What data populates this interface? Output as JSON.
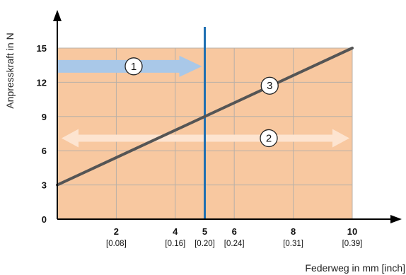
{
  "chart_data": {
    "type": "line",
    "xlabel": "Federweg in mm [inch]",
    "ylabel": "Anpresskraft in N",
    "xlim": [
      0,
      10
    ],
    "ylim": [
      0,
      15
    ],
    "x_ticks": [
      {
        "value": 2,
        "label": "2",
        "sublabel": "[0.08]"
      },
      {
        "value": 4,
        "label": "4",
        "sublabel": "[0.16]"
      },
      {
        "value": 5,
        "label": "5",
        "sublabel": "[0.20]"
      },
      {
        "value": 6,
        "label": "6",
        "sublabel": "[0.24]"
      },
      {
        "value": 8,
        "label": "8",
        "sublabel": "[0.31]"
      },
      {
        "value": 10,
        "label": "10",
        "sublabel": "[0.39]"
      }
    ],
    "y_ticks": [
      {
        "value": 0,
        "label": "0"
      },
      {
        "value": 3,
        "label": "3"
      },
      {
        "value": 6,
        "label": "6"
      },
      {
        "value": 9,
        "label": "9"
      },
      {
        "value": 12,
        "label": "12"
      },
      {
        "value": 15,
        "label": "15"
      }
    ],
    "grid": true,
    "series": [
      {
        "x": [
          0,
          10
        ],
        "y": [
          3,
          15
        ],
        "color": "#555555"
      }
    ],
    "region": {
      "x": [
        0,
        10
      ],
      "y": [
        0,
        15
      ],
      "color": "#f8c8a0"
    },
    "vline": {
      "x": 5,
      "color": "#1f6fb2"
    },
    "annotations": [
      {
        "id": "arrow-1",
        "label": "1",
        "kind": "right-arrow",
        "x_from": 0,
        "x_to": 5,
        "y": 13.4,
        "color": "#a9c8e8"
      },
      {
        "id": "arrow-2",
        "label": "2",
        "kind": "double-arrow",
        "x_from": 0,
        "x_to": 10,
        "y": 7.1,
        "color": "#fde4d0"
      },
      {
        "id": "marker-3",
        "label": "3",
        "kind": "circle",
        "x": 7.2,
        "y": 11.7
      }
    ]
  }
}
